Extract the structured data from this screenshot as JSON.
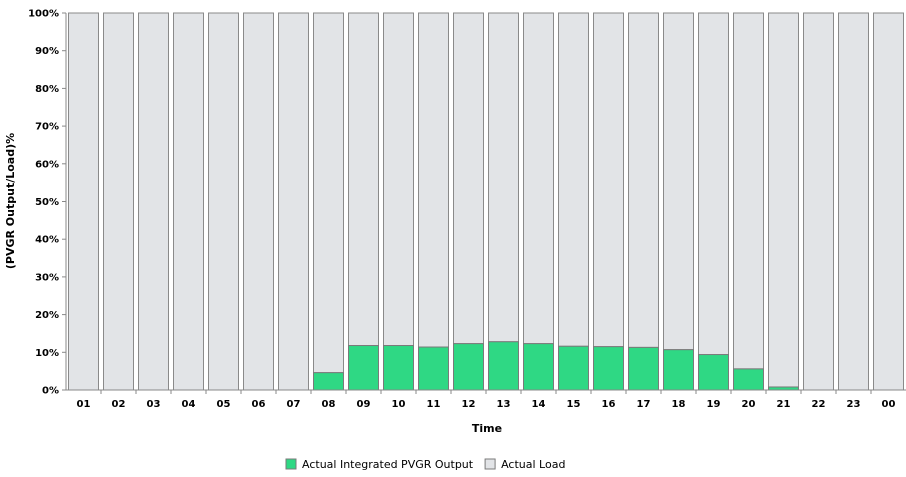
{
  "chart_data": {
    "type": "bar",
    "stacked": true,
    "ylabel": "(PVGR Output/Load)%",
    "xlabel": "Time",
    "ylim": [
      0,
      100
    ],
    "y_tick_labels": [
      "0%",
      "10%",
      "20%",
      "30%",
      "40%",
      "50%",
      "60%",
      "70%",
      "80%",
      "90%",
      "100%"
    ],
    "categories": [
      "01",
      "02",
      "03",
      "04",
      "05",
      "06",
      "07",
      "08",
      "09",
      "10",
      "11",
      "12",
      "13",
      "14",
      "15",
      "16",
      "17",
      "18",
      "19",
      "20",
      "21",
      "22",
      "23",
      "00"
    ],
    "series": [
      {
        "name": "Actual Integrated PVGR Output",
        "color": "#2fd884",
        "values": [
          0,
          0,
          0,
          0,
          0,
          0,
          0,
          4.6,
          11.8,
          11.8,
          11.4,
          12.3,
          12.8,
          12.3,
          11.6,
          11.5,
          11.3,
          10.7,
          9.4,
          5.6,
          0.8,
          0,
          0,
          0
        ]
      },
      {
        "name": "Actual Load",
        "color": "#e2e4e7",
        "values": [
          100,
          100,
          100,
          100,
          100,
          100,
          100,
          95.4,
          88.2,
          88.2,
          88.6,
          87.7,
          87.2,
          87.7,
          88.4,
          88.5,
          88.7,
          89.3,
          90.6,
          94.4,
          99.2,
          100,
          100,
          100
        ]
      }
    ],
    "legend_position": "bottom-center",
    "grid": false
  }
}
